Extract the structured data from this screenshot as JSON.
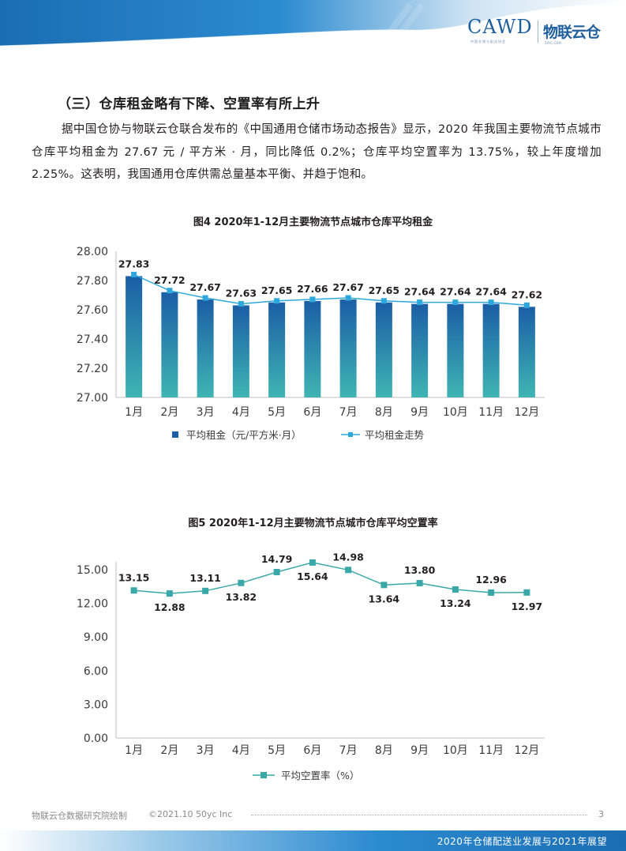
{
  "header": {
    "logo_cawd": "CAWD",
    "logo_cawd_sub": "中国仓储与配送协会",
    "logo_wly": "物联云仓",
    "logo_wly_sub": "50YC.COM"
  },
  "section": {
    "title": "（三）仓库租金略有下降、空置率有所上升",
    "paragraph": "据中国仓协与物联云仓联合发布的《中国通用仓储市场动态报告》显示，2020 年我国主要物流节点城市仓库平均租金为 27.67 元 / 平方米 · 月，同比降低 0.2%；仓库平均空置率为 13.75%，较上年度增加 2.25%。这表明，我国通用仓库供需总量基本平衡、并趋于饱和。"
  },
  "colors": {
    "bar_top": "#1b5ea6",
    "bar_bottom": "#3fb5b3",
    "line": "#2da8dc",
    "vacancy_line": "#3aa8a8",
    "header_blue": "#1b6db3"
  },
  "chart_data": [
    {
      "type": "bar",
      "title": "图4 2020年1-12月主要物流节点城市仓库平均租金",
      "categories": [
        "1月",
        "2月",
        "3月",
        "4月",
        "5月",
        "6月",
        "7月",
        "8月",
        "9月",
        "10月",
        "11月",
        "12月"
      ],
      "series": [
        {
          "name": "平均租金（元/平方米·月）",
          "type": "bar",
          "values": [
            27.83,
            27.72,
            27.67,
            27.63,
            27.65,
            27.66,
            27.67,
            27.65,
            27.64,
            27.64,
            27.64,
            27.62
          ]
        },
        {
          "name": "平均租金走势",
          "type": "line",
          "values": [
            27.83,
            27.72,
            27.67,
            27.63,
            27.65,
            27.66,
            27.67,
            27.65,
            27.64,
            27.64,
            27.64,
            27.62
          ]
        }
      ],
      "yticks": [
        "28.00",
        "27.80",
        "27.60",
        "27.40",
        "27.20",
        "27.00"
      ],
      "ylim": [
        27.0,
        28.0
      ],
      "legend": "bottom"
    },
    {
      "type": "line",
      "title": "图5 2020年1-12月主要物流节点城市仓库平均空置率",
      "categories": [
        "1月",
        "2月",
        "3月",
        "4月",
        "5月",
        "6月",
        "7月",
        "8月",
        "9月",
        "10月",
        "11月",
        "12月"
      ],
      "series": [
        {
          "name": "平均空置率（%）",
          "values": [
            13.15,
            12.88,
            13.11,
            13.82,
            14.79,
            15.64,
            14.98,
            13.64,
            13.8,
            13.24,
            12.96,
            12.97
          ]
        }
      ],
      "labels": [
        "13.15",
        "12.88",
        "13.11",
        "13.82",
        "14.79",
        "15.64",
        "14.98",
        "13.64",
        "13.80",
        "13.24",
        "12.96",
        "12.97"
      ],
      "label_pos": [
        "above",
        "below",
        "above",
        "below",
        "above",
        "below",
        "above",
        "below",
        "above",
        "below",
        "above",
        "below"
      ],
      "yticks": [
        "15.00",
        "12.00",
        "9.00",
        "6.00",
        "3.00",
        "0.00"
      ],
      "ylim": [
        0,
        15.0
      ],
      "legend": "bottom"
    }
  ],
  "footer": {
    "left": "物联云仓数据研究院绘制",
    "copyright": "©2021.10 50yc Inc",
    "page": "3",
    "report_title": "2020年仓储配送业发展与2021年展望"
  }
}
